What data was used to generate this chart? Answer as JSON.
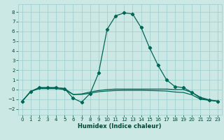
{
  "title": "",
  "xlabel": "Humidex (Indice chaleur)",
  "bg_color": "#cce8e4",
  "grid_color": "#99cccc",
  "line_color": "#006655",
  "xlim": [
    -0.5,
    23.5
  ],
  "ylim": [
    -2.6,
    8.8
  ],
  "xticks": [
    0,
    1,
    2,
    3,
    4,
    5,
    6,
    7,
    8,
    9,
    10,
    11,
    12,
    13,
    14,
    15,
    16,
    17,
    18,
    19,
    20,
    21,
    22,
    23
  ],
  "yticks": [
    -2,
    -1,
    0,
    1,
    2,
    3,
    4,
    5,
    6,
    7,
    8
  ],
  "curve1_x": [
    0,
    1,
    2,
    3,
    4,
    5,
    6,
    7,
    8,
    9,
    10,
    11,
    12,
    13,
    14,
    15,
    16,
    17,
    18,
    19,
    20,
    21,
    22,
    23
  ],
  "curve1_y": [
    -1.2,
    -0.2,
    0.2,
    0.2,
    0.2,
    0.1,
    -0.9,
    -1.3,
    -0.4,
    1.7,
    6.2,
    7.6,
    7.9,
    7.8,
    6.4,
    4.3,
    2.5,
    1.0,
    0.3,
    0.2,
    -0.3,
    -0.9,
    -1.1,
    -1.2
  ],
  "curve2_x": [
    0,
    1,
    2,
    3,
    4,
    5,
    6,
    7,
    8,
    9,
    10,
    11,
    12,
    13,
    14,
    15,
    16,
    17,
    18,
    19,
    20,
    21,
    22,
    23
  ],
  "curve2_y": [
    -1.2,
    -0.2,
    0.2,
    0.2,
    0.2,
    0.1,
    -0.5,
    -0.45,
    -0.25,
    -0.1,
    0.0,
    0.05,
    0.05,
    0.05,
    0.05,
    0.05,
    0.05,
    0.05,
    0.0,
    0.0,
    -0.3,
    -0.8,
    -1.05,
    -1.2
  ],
  "curve3_x": [
    0,
    1,
    2,
    3,
    4,
    5,
    6,
    7,
    8,
    9,
    10,
    11,
    12,
    13,
    14,
    15,
    16,
    17,
    18,
    19,
    20,
    21,
    22,
    23
  ],
  "curve3_y": [
    -1.2,
    -0.2,
    0.1,
    0.1,
    0.1,
    0.0,
    -0.5,
    -0.5,
    -0.38,
    -0.22,
    -0.15,
    -0.1,
    -0.08,
    -0.08,
    -0.08,
    -0.1,
    -0.12,
    -0.15,
    -0.25,
    -0.3,
    -0.55,
    -1.0,
    -1.1,
    -1.2
  ]
}
